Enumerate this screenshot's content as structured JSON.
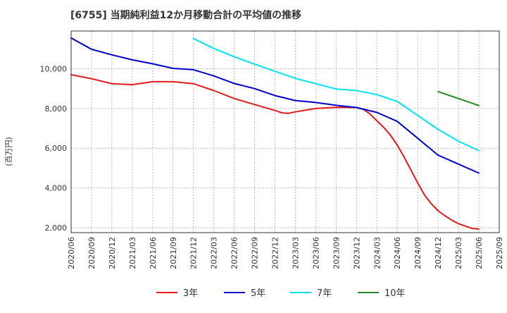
{
  "chart_data": {
    "type": "line",
    "title": "[6755]  当期純利益12か月移動合計の平均値の推移",
    "xlabel": "",
    "ylabel": "(百万円)",
    "ylim": [
      1750,
      11900
    ],
    "yticks": [
      2000,
      4000,
      6000,
      8000,
      10000
    ],
    "ytick_labels": [
      "2,000",
      "4,000",
      "6,000",
      "8,000",
      "10,000"
    ],
    "categories": [
      "2020/06",
      "2020/09",
      "2020/12",
      "2021/03",
      "2021/06",
      "2021/09",
      "2021/12",
      "2022/03",
      "2022/06",
      "2022/09",
      "2022/12",
      "2023/03",
      "2023/06",
      "2023/09",
      "2023/12",
      "2024/03",
      "2024/06",
      "2024/09",
      "2024/12",
      "2025/03",
      "2025/06",
      "2025/09"
    ],
    "x_month_index": [
      0,
      3,
      6,
      9,
      12,
      15,
      18,
      21,
      24,
      27,
      30,
      33,
      36,
      39,
      42,
      45,
      48,
      51,
      54,
      57,
      60,
      63
    ],
    "grid": true,
    "legend_position": "bottom",
    "series": [
      {
        "name": "3年",
        "color": "#e31a1c",
        "x": [
          0,
          3,
          6,
          9,
          12,
          15,
          18,
          21,
          24,
          27,
          30,
          31,
          32,
          33,
          36,
          39,
          42,
          43,
          44,
          45,
          46,
          47,
          48,
          49,
          50,
          51,
          52,
          53,
          54,
          55,
          56,
          57,
          58,
          59,
          60
        ],
        "values": [
          9700,
          9500,
          9250,
          9200,
          9350,
          9350,
          9250,
          8900,
          8500,
          8200,
          7900,
          7780,
          7760,
          7830,
          8000,
          8060,
          8050,
          7960,
          7720,
          7380,
          7050,
          6650,
          6150,
          5550,
          4900,
          4250,
          3650,
          3200,
          2850,
          2600,
          2380,
          2200,
          2080,
          1960,
          1930
        ]
      },
      {
        "name": "5年",
        "color": "#0000cc",
        "x": [
          0,
          3,
          6,
          9,
          12,
          15,
          18,
          21,
          24,
          27,
          30,
          33,
          36,
          39,
          42,
          45,
          48,
          51,
          54,
          57,
          60
        ],
        "values": [
          11550,
          10980,
          10700,
          10450,
          10250,
          10020,
          9950,
          9640,
          9260,
          9000,
          8650,
          8400,
          8300,
          8160,
          8050,
          7800,
          7350,
          6500,
          5650,
          5200,
          4750
        ]
      },
      {
        "name": "7年",
        "color": "#00e5ee",
        "x": [
          18,
          21,
          24,
          27,
          30,
          33,
          36,
          39,
          42,
          45,
          48,
          51,
          54,
          57,
          60
        ],
        "values": [
          11520,
          11020,
          10600,
          10230,
          9870,
          9520,
          9250,
          8980,
          8900,
          8700,
          8350,
          7650,
          6950,
          6350,
          5880
        ]
      },
      {
        "name": "10年",
        "color": "#228b22",
        "x": [
          54,
          60
        ],
        "values": [
          8850,
          8150
        ]
      }
    ]
  }
}
